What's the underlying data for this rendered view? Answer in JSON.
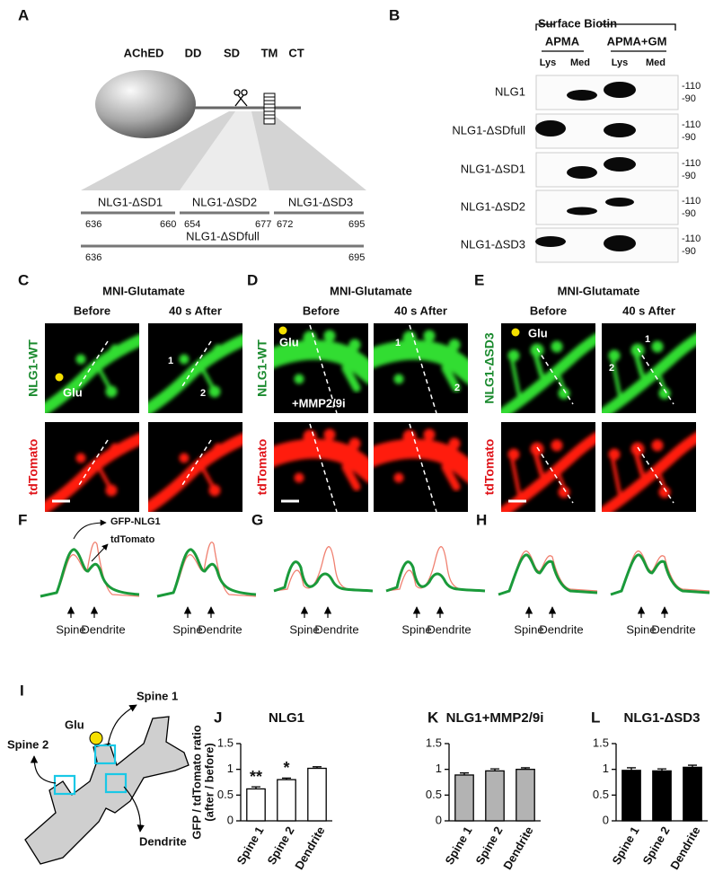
{
  "panel_labels": [
    "A",
    "B",
    "C",
    "D",
    "E",
    "F",
    "G",
    "H",
    "I",
    "J",
    "K",
    "L"
  ],
  "panel_a": {
    "domains": [
      "AChED",
      "DD",
      "SD",
      "TM",
      "CT"
    ],
    "constructs": [
      {
        "name": "NLG1-ΔSD1",
        "start": 636,
        "end": 660
      },
      {
        "name": "NLG1-ΔSD2",
        "start": 654,
        "end": 677
      },
      {
        "name": "NLG1-ΔSD3",
        "start": 672,
        "end": 695
      }
    ],
    "full": {
      "name": "NLG1-ΔSDfull",
      "start": 636,
      "end": 695
    }
  },
  "panel_b": {
    "header": "Surface Biotin",
    "conditions": [
      "APMA",
      "APMA+GM"
    ],
    "lanes": [
      "Lys",
      "Med",
      "Lys",
      "Med"
    ],
    "rows": [
      "NLG1",
      "NLG1-ΔSDfull",
      "NLG1-ΔSD1",
      "NLG1-ΔSD2",
      "NLG1-ΔSD3"
    ],
    "markers": [
      "-110",
      "-90"
    ]
  },
  "imaging": [
    {
      "stimulus": "MNI-Glutamate",
      "times": [
        "Before",
        "40 s After"
      ],
      "rows": [
        "NLG1-WT",
        "tdTomato"
      ],
      "glu": "Glu",
      "spines": [
        1,
        2
      ]
    },
    {
      "stimulus": "MNI-Glutamate",
      "times": [
        "Before",
        "40 s After"
      ],
      "rows": [
        "NLG1-WT",
        "tdTomato"
      ],
      "glu": "Glu",
      "spines": [
        1,
        2
      ],
      "treatment": "+MMP2/9i"
    },
    {
      "stimulus": "MNI-Glutamate",
      "times": [
        "Before",
        "40 s After"
      ],
      "rows": [
        "NLG1-ΔSD3",
        "tdTomato"
      ],
      "glu": "Glu",
      "spines": [
        1,
        2
      ]
    }
  ],
  "profiles": {
    "legend": [
      "GFP-NLG1",
      "tdTomato"
    ],
    "x_labels": [
      "Spine",
      "Dendrite"
    ]
  },
  "schematic": {
    "glu": "Glu",
    "spine1": "Spine 1",
    "spine2": "Spine 2",
    "dendrite": "Dendrite"
  },
  "chart_data": [
    {
      "type": "bar",
      "title": "NLG1",
      "y_label": [
        "GFP / tdTomato ratio",
        "(after / before)"
      ],
      "categories": [
        "Spine 1",
        "Spine 2",
        "Dendrite"
      ],
      "values": [
        0.62,
        0.8,
        1.02
      ],
      "errors": [
        0.04,
        0.03,
        0.03
      ],
      "annotations": [
        "**",
        "*",
        null
      ],
      "color": "#ffffff",
      "ylim": [
        0,
        1.5
      ],
      "yticks": [
        0,
        0.5,
        1,
        1.5
      ]
    },
    {
      "type": "bar",
      "title": "NLG1+MMP2/9i",
      "categories": [
        "Spine 1",
        "Spine 2",
        "Dendrite"
      ],
      "values": [
        0.89,
        0.97,
        1.0
      ],
      "errors": [
        0.04,
        0.04,
        0.03
      ],
      "color": "#b3b3b3",
      "ylim": [
        0,
        1.5
      ],
      "yticks": [
        0,
        0.5,
        1,
        1.5
      ]
    },
    {
      "type": "bar",
      "title": "NLG1-ΔSD3",
      "categories": [
        "Spine 1",
        "Spine 2",
        "Dendrite"
      ],
      "values": [
        0.98,
        0.97,
        1.04
      ],
      "errors": [
        0.05,
        0.04,
        0.04
      ],
      "color": "#000000",
      "ylim": [
        0,
        1.5
      ],
      "yticks": [
        0,
        0.5,
        1,
        1.5
      ]
    }
  ]
}
